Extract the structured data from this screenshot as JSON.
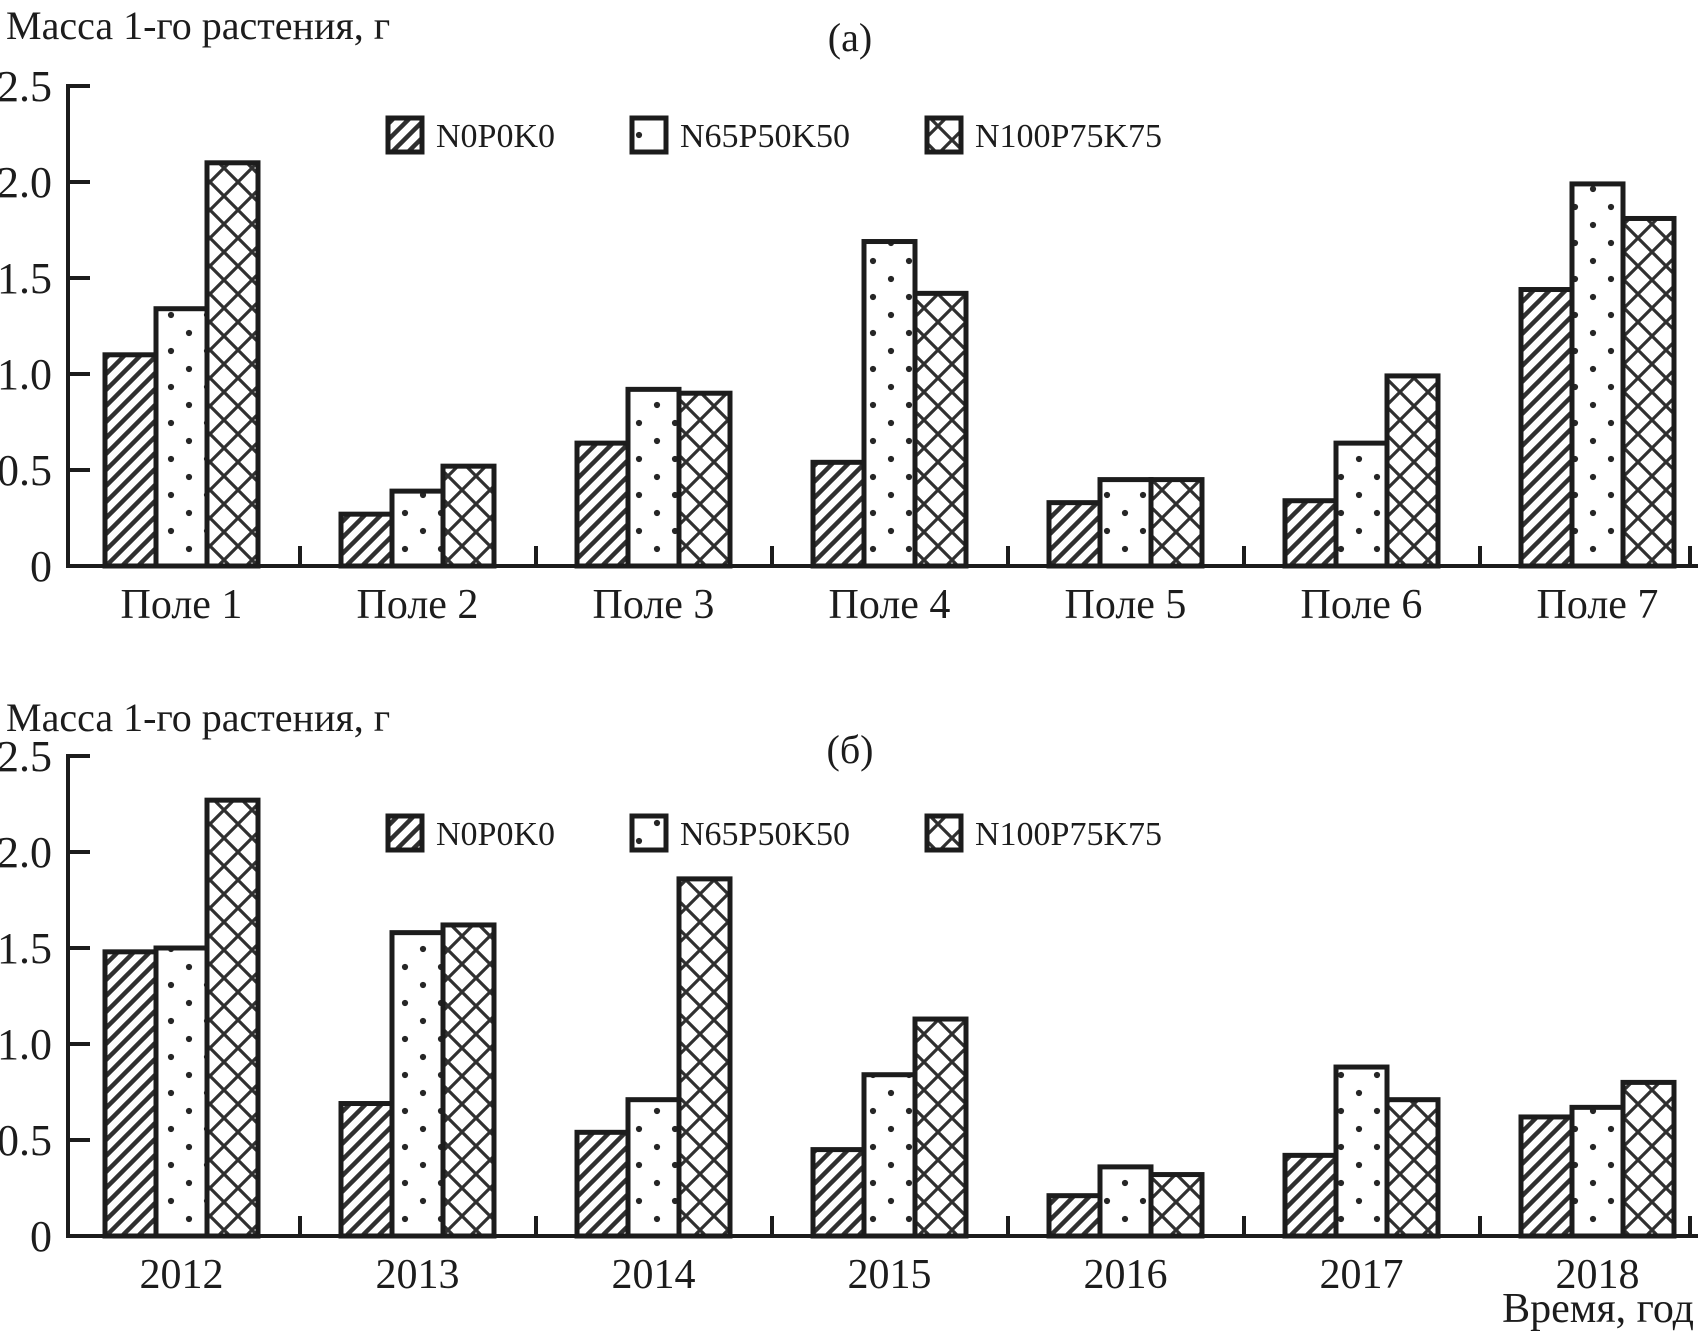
{
  "figure": {
    "background": "#ffffff",
    "ink": "#1c1c1c",
    "pattern_ink": "#303030"
  },
  "chart_data": [
    {
      "type": "bar",
      "panel_label": "(а)",
      "y_axis_title": "Масса 1-го растения, г",
      "x_axis_title": "",
      "categories": [
        "Поле 1",
        "Поле 2",
        "Поле 3",
        "Поле 4",
        "Поле 5",
        "Поле 6",
        "Поле 7"
      ],
      "series": [
        {
          "name": "N0P0K0",
          "pattern": "diagonal-hatch",
          "values": [
            1.1,
            0.27,
            0.64,
            0.54,
            0.33,
            0.34,
            1.44
          ]
        },
        {
          "name": "N65P50K50",
          "pattern": "dots",
          "values": [
            1.34,
            0.39,
            0.92,
            1.69,
            0.45,
            0.64,
            1.99
          ]
        },
        {
          "name": "N100P75K75",
          "pattern": "diagonal-crosshatch",
          "values": [
            2.1,
            0.52,
            0.9,
            1.42,
            0.45,
            0.99,
            1.81
          ]
        }
      ],
      "ylim": [
        0,
        2.5
      ],
      "ytick_step": 0.5,
      "ytick_labels": [
        "0",
        "0.5",
        "1.0",
        "1.5",
        "2.0",
        "2.5"
      ],
      "grid": false,
      "legend_position": "top-inside"
    },
    {
      "type": "bar",
      "panel_label": "(б)",
      "y_axis_title": "Масса 1-го растения, г",
      "x_axis_title": "Время, год",
      "categories": [
        "2012",
        "2013",
        "2014",
        "2015",
        "2016",
        "2017",
        "2018"
      ],
      "series": [
        {
          "name": "N0P0K0",
          "pattern": "diagonal-hatch",
          "values": [
            1.48,
            0.69,
            0.54,
            0.45,
            0.21,
            0.42,
            0.62
          ]
        },
        {
          "name": "N65P50K50",
          "pattern": "dots",
          "values": [
            1.5,
            1.58,
            0.71,
            0.84,
            0.36,
            0.88,
            0.67
          ]
        },
        {
          "name": "N100P75K75",
          "pattern": "diagonal-crosshatch",
          "values": [
            2.27,
            1.62,
            1.86,
            1.13,
            0.32,
            0.71,
            0.8
          ]
        }
      ],
      "ylim": [
        0,
        2.5
      ],
      "ytick_step": 0.5,
      "ytick_labels": [
        "0",
        "0.5",
        "1.0",
        "1.5",
        "2.0",
        "2.5"
      ],
      "grid": false,
      "legend_position": "top-inside"
    }
  ]
}
